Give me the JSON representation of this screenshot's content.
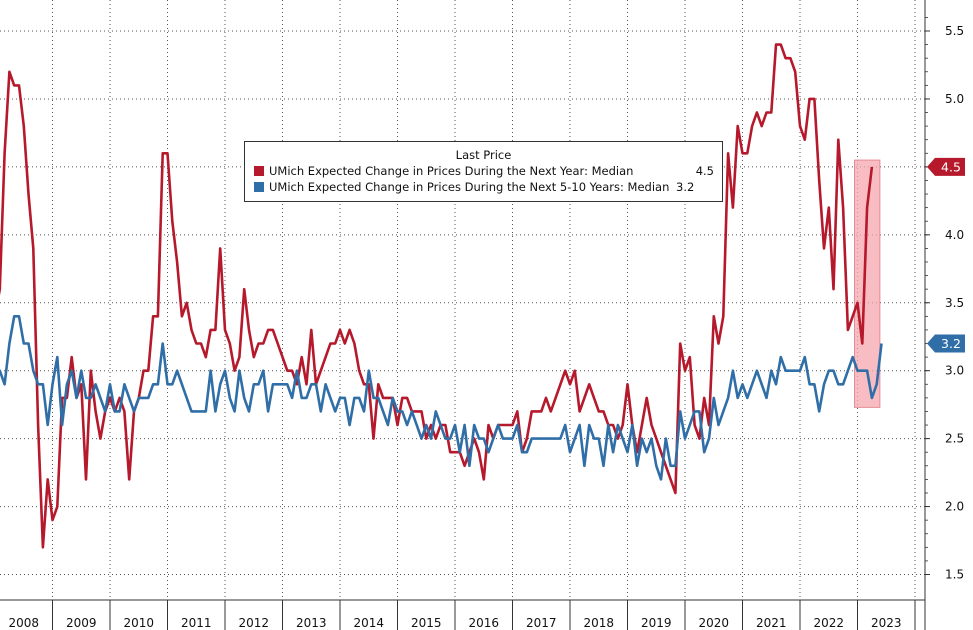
{
  "chart_data": {
    "type": "line",
    "title": "",
    "xlabel": "",
    "ylabel": "",
    "x_start": "2008-01",
    "x_labels": [
      "2008",
      "2009",
      "2010",
      "2011",
      "2012",
      "2013",
      "2014",
      "2015",
      "2016",
      "2017",
      "2018",
      "2019",
      "2020",
      "2021",
      "2022",
      "2023"
    ],
    "y_ticks": [
      1.5,
      2.0,
      2.5,
      3.0,
      3.5,
      4.0,
      4.5,
      5.0,
      5.5
    ],
    "y_tick_labels": [
      "1.5",
      "2.0",
      "2.5",
      "3.0",
      "3.5",
      "4.0",
      "4.5",
      "5.0",
      "5.5"
    ],
    "ylim": [
      1.4,
      5.65
    ],
    "grid": true,
    "legend_position": "top-center",
    "legend_title": "Last Price",
    "series": [
      {
        "name": "UMich Expected Change in Prices During the Next Year: Median",
        "color": "#b5192b",
        "last_value": "4.5",
        "last_label": "4.5",
        "values": [
          3.4,
          3.6,
          4.6,
          5.2,
          5.1,
          5.1,
          4.8,
          4.3,
          3.9,
          2.6,
          1.7,
          2.2,
          1.9,
          2.0,
          2.8,
          2.8,
          3.1,
          2.8,
          2.9,
          2.2,
          3.0,
          2.7,
          2.5,
          2.7,
          2.8,
          2.7,
          2.8,
          2.7,
          2.2,
          2.7,
          2.8,
          3.0,
          3.0,
          3.4,
          3.4,
          4.6,
          4.6,
          4.1,
          3.8,
          3.4,
          3.5,
          3.3,
          3.2,
          3.2,
          3.1,
          3.3,
          3.3,
          3.9,
          3.3,
          3.2,
          3.0,
          3.1,
          3.6,
          3.3,
          3.1,
          3.2,
          3.2,
          3.3,
          3.3,
          3.2,
          3.1,
          3.0,
          3.0,
          2.9,
          3.1,
          2.9,
          3.3,
          2.9,
          3.0,
          3.1,
          3.2,
          3.2,
          3.3,
          3.2,
          3.3,
          3.2,
          3.0,
          2.9,
          2.9,
          2.5,
          2.9,
          2.8,
          2.8,
          2.8,
          2.6,
          2.8,
          2.8,
          2.7,
          2.7,
          2.7,
          2.5,
          2.6,
          2.5,
          2.6,
          2.6,
          2.4,
          2.4,
          2.4,
          2.3,
          2.4,
          2.5,
          2.4,
          2.2,
          2.6,
          2.5,
          2.6,
          2.6,
          2.6,
          2.6,
          2.7,
          2.4,
          2.5,
          2.7,
          2.7,
          2.7,
          2.8,
          2.7,
          2.8,
          2.9,
          3.0,
          2.9,
          3.0,
          2.7,
          2.8,
          2.9,
          2.8,
          2.7,
          2.7,
          2.6,
          2.6,
          2.5,
          2.6,
          2.9,
          2.6,
          2.4,
          2.6,
          2.8,
          2.6,
          2.5,
          2.4,
          2.3,
          2.2,
          2.1,
          3.2,
          3.0,
          3.1,
          2.6,
          2.5,
          2.8,
          2.6,
          3.4,
          3.2,
          3.4,
          4.6,
          4.2,
          4.8,
          4.6,
          4.6,
          4.8,
          4.9,
          4.8,
          4.9,
          4.9,
          5.4,
          5.4,
          5.3,
          5.3,
          5.2,
          4.8,
          4.7,
          5.0,
          5.0,
          4.4,
          3.9,
          4.2,
          3.6,
          4.7,
          4.2,
          3.3,
          3.4,
          3.5,
          3.2,
          4.2,
          4.5
        ]
      },
      {
        "name": "UMich Expected Change in Prices During the Next 5-10 Years: Median",
        "color": "#2f6ea7",
        "last_value": "3.2",
        "last_label": "3.2",
        "values": [
          3.0,
          3.0,
          2.9,
          3.2,
          3.4,
          3.4,
          3.2,
          3.2,
          3.0,
          2.9,
          2.9,
          2.6,
          2.9,
          3.1,
          2.6,
          2.9,
          3.0,
          2.8,
          3.0,
          2.8,
          2.8,
          2.9,
          2.8,
          2.7,
          2.9,
          2.7,
          2.7,
          2.9,
          2.8,
          2.7,
          2.8,
          2.8,
          2.8,
          2.9,
          2.9,
          3.2,
          2.9,
          2.9,
          3.0,
          2.9,
          2.8,
          2.7,
          2.7,
          2.7,
          2.7,
          3.0,
          2.7,
          2.9,
          3.0,
          2.8,
          2.7,
          3.0,
          2.8,
          2.7,
          2.9,
          2.9,
          3.0,
          2.7,
          2.9,
          2.9,
          2.9,
          2.9,
          2.8,
          3.0,
          2.8,
          2.8,
          2.9,
          2.9,
          2.7,
          2.9,
          2.8,
          2.7,
          2.8,
          2.8,
          2.6,
          2.8,
          2.8,
          2.7,
          3.0,
          2.8,
          2.8,
          2.7,
          2.6,
          2.8,
          2.7,
          2.7,
          2.6,
          2.7,
          2.6,
          2.5,
          2.6,
          2.5,
          2.7,
          2.6,
          2.5,
          2.5,
          2.6,
          2.4,
          2.6,
          2.3,
          2.6,
          2.5,
          2.5,
          2.4,
          2.5,
          2.6,
          2.5,
          2.5,
          2.5,
          2.6,
          2.4,
          2.4,
          2.5,
          2.5,
          2.5,
          2.5,
          2.5,
          2.5,
          2.5,
          2.6,
          2.4,
          2.5,
          2.6,
          2.3,
          2.6,
          2.5,
          2.5,
          2.3,
          2.6,
          2.4,
          2.6,
          2.5,
          2.4,
          2.6,
          2.3,
          2.5,
          2.4,
          2.5,
          2.3,
          2.2,
          2.5,
          2.3,
          2.3,
          2.7,
          2.5,
          2.6,
          2.7,
          2.7,
          2.4,
          2.5,
          2.8,
          2.6,
          2.7,
          2.8,
          3.0,
          2.8,
          2.9,
          2.8,
          2.9,
          3.0,
          2.9,
          2.8,
          3.0,
          2.9,
          3.1,
          3.0,
          3.0,
          3.0,
          3.0,
          3.1,
          2.9,
          2.9,
          2.7,
          2.9,
          3.0,
          3.0,
          2.9,
          2.9,
          3.0,
          3.1,
          3.0,
          3.0,
          3.0,
          2.8,
          2.9,
          3.2
        ]
      }
    ],
    "highlight_range_last_points": 4
  }
}
